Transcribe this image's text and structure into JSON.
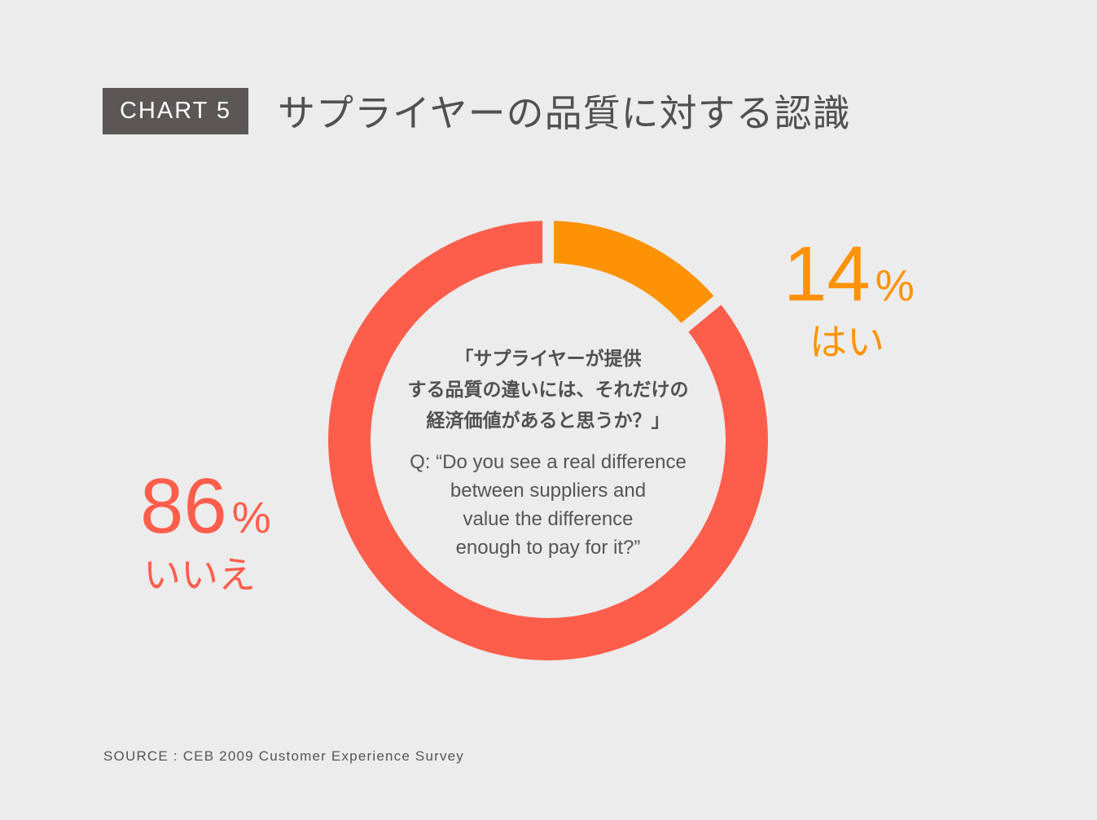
{
  "badge": "CHART 5",
  "title": "サプライヤーの品質に対する認識",
  "question_ja": [
    "「サプライヤーが提供",
    "する品質の違いには、それだけの",
    "経済価値があると思うか？」"
  ],
  "question_en": [
    "Q: “Do you see a real difference",
    "between suppliers and",
    "value the difference",
    "enough to pay for it?”"
  ],
  "source": "SOURCE : CEB 2009 Customer Experience Survey",
  "colors": {
    "yes": "#fd9304",
    "no": "#fd5e4c",
    "background": "#ececec",
    "text": "#505050"
  },
  "chart_data": {
    "type": "pie",
    "style": "donut",
    "slices": [
      {
        "label": "はい",
        "value": 14,
        "value_text": "14",
        "unit": "%",
        "color": "#fd9304"
      },
      {
        "label": "いいえ",
        "value": 86,
        "value_text": "86",
        "unit": "%",
        "color": "#fd5e4c"
      }
    ],
    "start_angle": "12 o'clock",
    "direction": "clockwise"
  }
}
